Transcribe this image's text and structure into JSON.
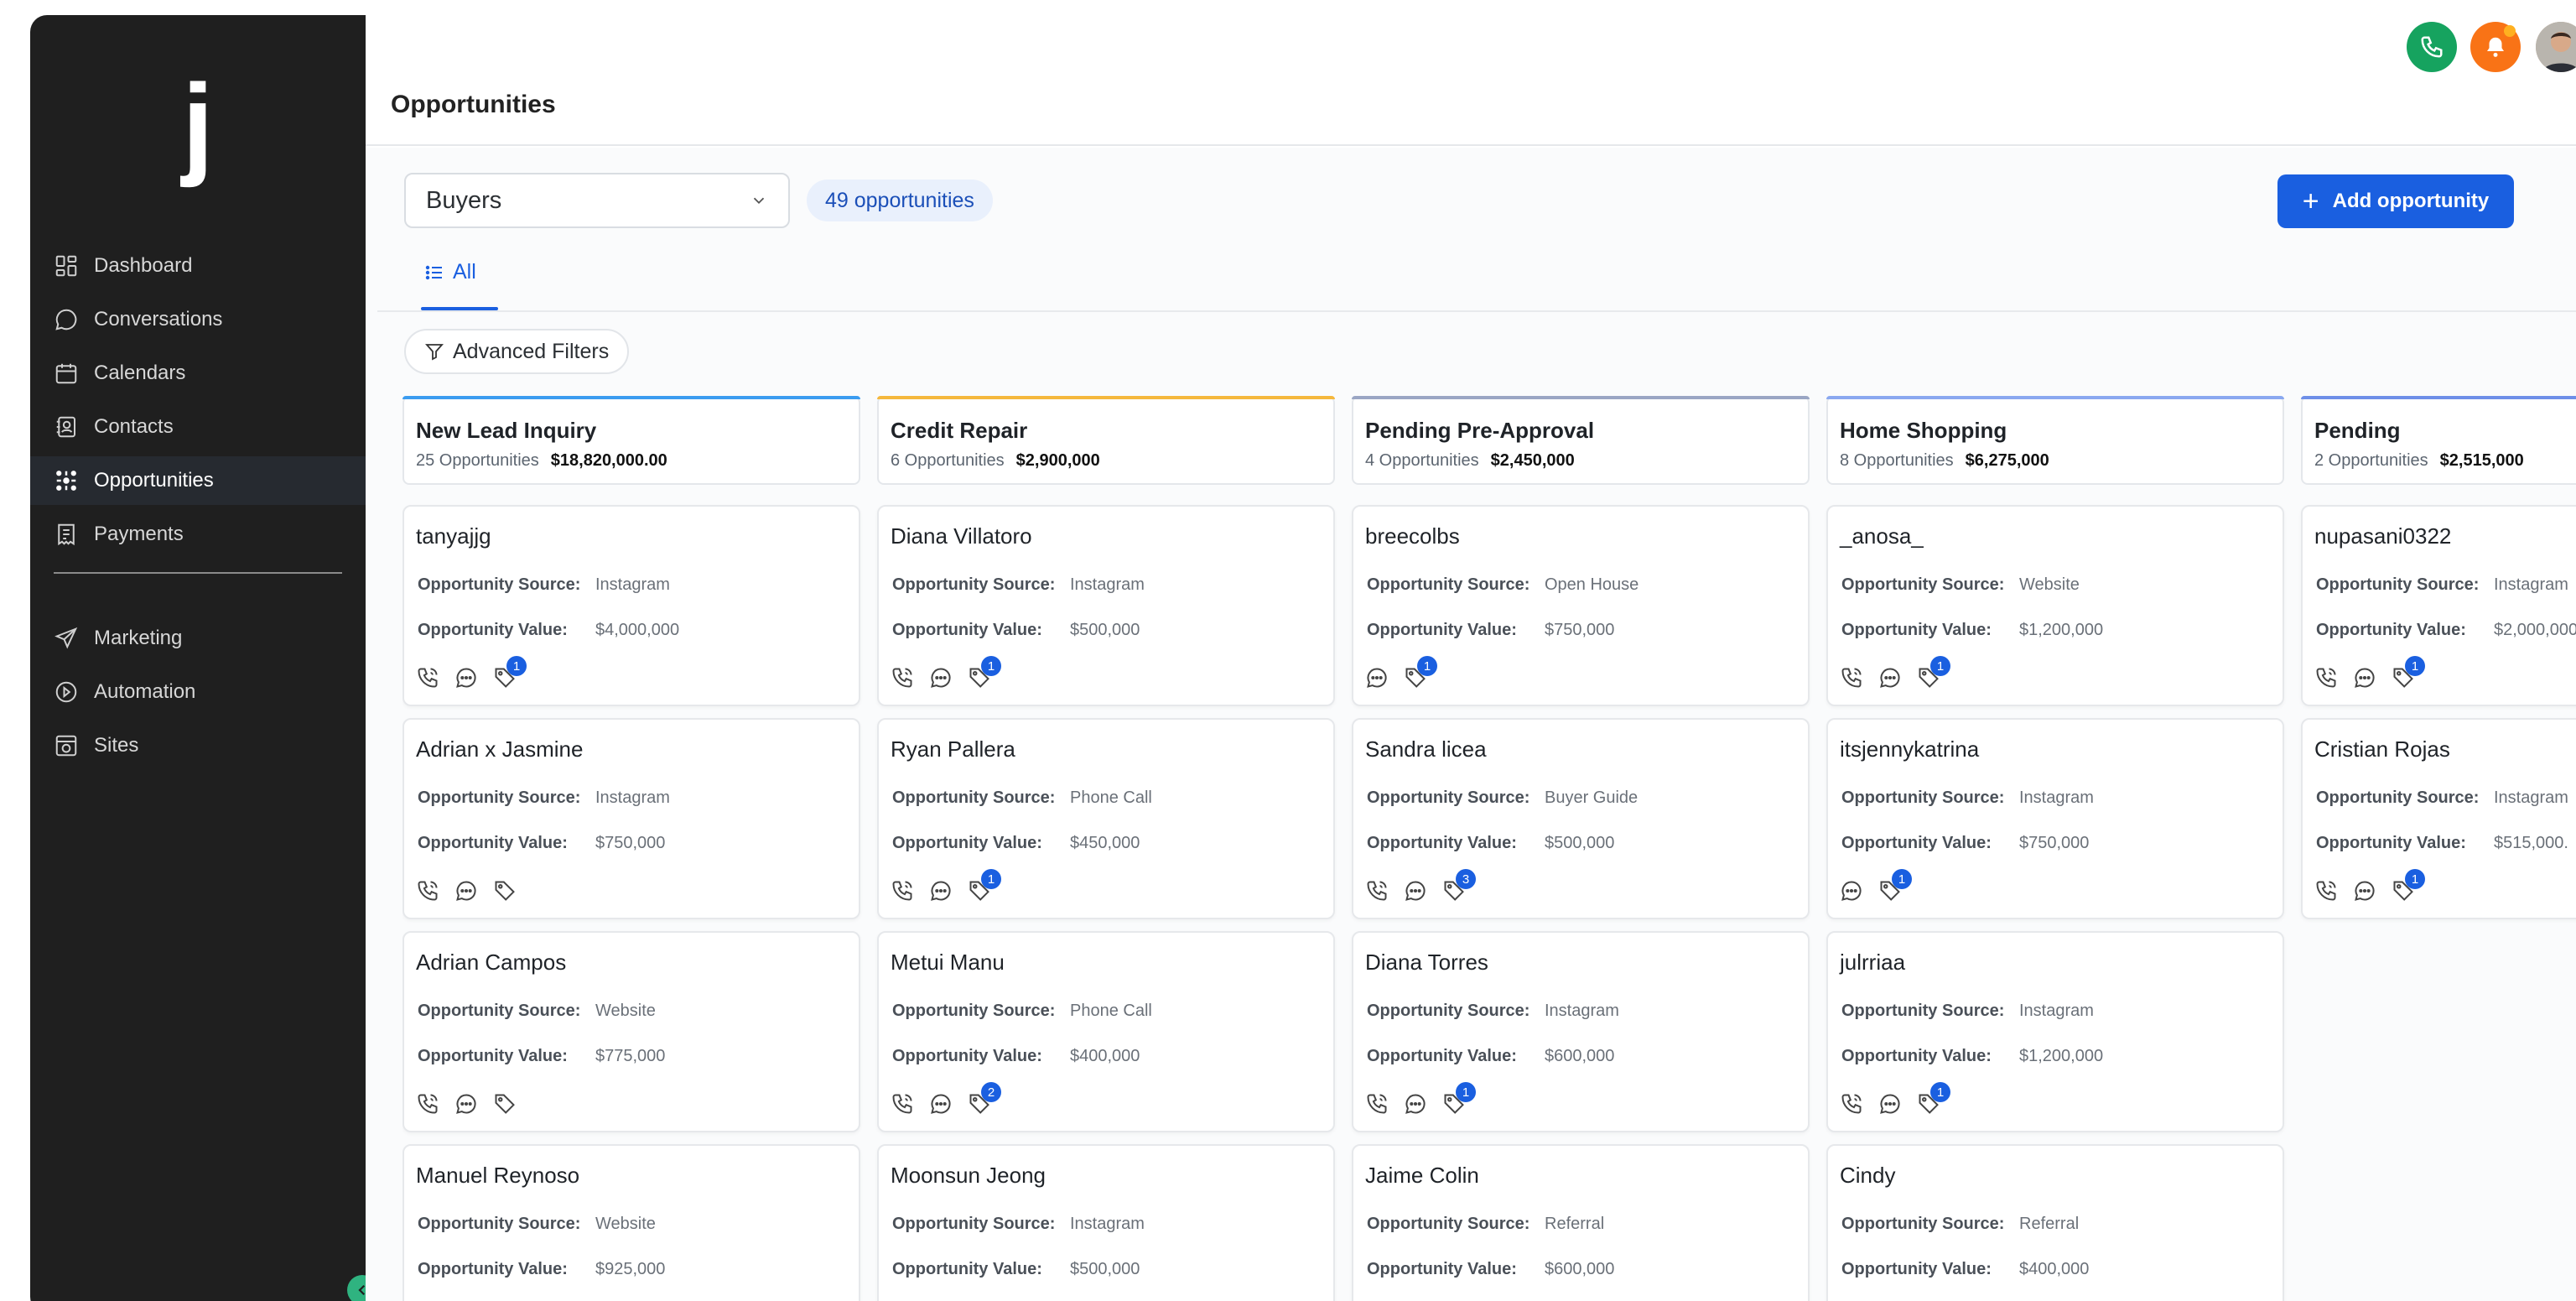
{
  "logo": "j",
  "nav": [
    {
      "label": "Dashboard",
      "icon": "dashboard-icon"
    },
    {
      "label": "Conversations",
      "icon": "chat-bubble-icon"
    },
    {
      "label": "Calendars",
      "icon": "calendar-icon"
    },
    {
      "label": "Contacts",
      "icon": "contacts-icon"
    },
    {
      "label": "Opportunities",
      "icon": "opportunities-icon",
      "active": true
    },
    {
      "label": "Payments",
      "icon": "payments-icon"
    },
    {
      "label": "Marketing",
      "icon": "send-icon"
    },
    {
      "label": "Automation",
      "icon": "automation-icon"
    },
    {
      "label": "Sites",
      "icon": "sites-icon"
    }
  ],
  "header": {
    "title": "Opportunities"
  },
  "pipeline": {
    "selected": "Buyers",
    "count_label": "49 opportunities"
  },
  "add_button": "Add opportunity",
  "tab_all": "All",
  "filters_label": "Advanced Filters",
  "colors": {
    "accent": "#1a5fe0",
    "call": "#16a35f",
    "notify": "#f97316",
    "sidebar": "#1f1f1f"
  },
  "labels": {
    "source": "Opportunity Source:",
    "value": "Opportunity Value:"
  },
  "columns": [
    {
      "title": "New Lead Inquiry",
      "count": "25 Opportunities",
      "total": "$18,820,000.00",
      "color": "#3b9cf0",
      "cards": [
        {
          "name": "tanyajjg",
          "source": "Instagram",
          "value": "$4,000,000",
          "call": true,
          "tag_badge": "1"
        },
        {
          "name": "Adrian x Jasmine",
          "source": "Instagram",
          "value": "$750,000",
          "call": true,
          "tag_badge": ""
        },
        {
          "name": "Adrian Campos",
          "source": "Website",
          "value": "$775,000",
          "call": true,
          "tag_badge": ""
        },
        {
          "name": "Manuel Reynoso",
          "source": "Website",
          "value": "$925,000",
          "call": true,
          "tag_badge": ""
        }
      ]
    },
    {
      "title": "Credit Repair",
      "count": "6 Opportunities",
      "total": "$2,900,000",
      "color": "#f5b83d",
      "cards": [
        {
          "name": "Diana Villatoro",
          "source": "Instagram",
          "value": "$500,000",
          "call": true,
          "tag_badge": "1"
        },
        {
          "name": "Ryan Pallera",
          "source": "Phone Call",
          "value": "$450,000",
          "call": true,
          "tag_badge": "1"
        },
        {
          "name": "Metui Manu",
          "source": "Phone Call",
          "value": "$400,000",
          "call": true,
          "tag_badge": "2"
        },
        {
          "name": "Moonsun Jeong",
          "source": "Instagram",
          "value": "$500,000",
          "call": true,
          "tag_badge": ""
        }
      ]
    },
    {
      "title": "Pending Pre-Approval",
      "count": "4 Opportunities",
      "total": "$2,450,000",
      "color": "#9aa6c4",
      "cards": [
        {
          "name": "breecolbs",
          "source": "Open House",
          "value": "$750,000",
          "call": false,
          "tag_badge": "1"
        },
        {
          "name": "Sandra licea",
          "source": "Buyer Guide",
          "value": "$500,000",
          "call": true,
          "tag_badge": "3"
        },
        {
          "name": "Diana Torres",
          "source": "Instagram",
          "value": "$600,000",
          "call": true,
          "tag_badge": "1"
        },
        {
          "name": "Jaime Colin",
          "source": "Referral",
          "value": "$600,000",
          "call": true,
          "tag_badge": ""
        }
      ]
    },
    {
      "title": "Home Shopping",
      "count": "8 Opportunities",
      "total": "$6,275,000",
      "color": "#8aa8f0",
      "cards": [
        {
          "name": "_anosa_",
          "source": "Website",
          "value": "$1,200,000",
          "call": true,
          "tag_badge": "1"
        },
        {
          "name": "itsjennykatrina",
          "source": "Instagram",
          "value": "$750,000",
          "call": false,
          "tag_badge": "1"
        },
        {
          "name": "julrriaa",
          "source": "Instagram",
          "value": "$1,200,000",
          "call": true,
          "tag_badge": "1"
        },
        {
          "name": "Cindy",
          "source": "Referral",
          "value": "$400,000",
          "call": true,
          "tag_badge": ""
        }
      ]
    },
    {
      "title": "Pending",
      "count": "2 Opportunities",
      "total": "$2,515,000",
      "color": "#6e8fe8",
      "cards": [
        {
          "name": "nupasani0322",
          "source": "Instagram",
          "value": "$2,000,000",
          "call": true,
          "tag_badge": "1"
        },
        {
          "name": "Cristian Rojas",
          "source": "Instagram",
          "value": "$515,000.",
          "call": true,
          "tag_badge": "1"
        }
      ]
    }
  ]
}
